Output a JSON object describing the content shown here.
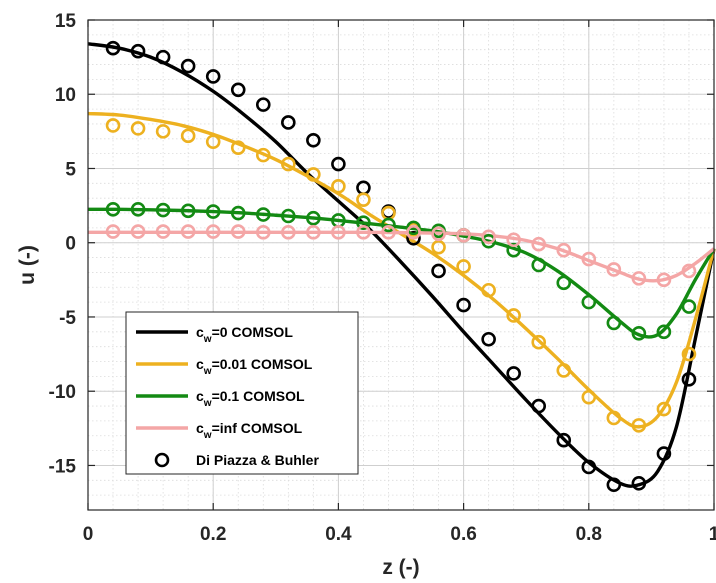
{
  "chart_data": {
    "type": "line",
    "xlabel": "z (-)",
    "ylabel": "u (-)",
    "xlim": [
      0,
      1
    ],
    "ylim": [
      -18,
      15
    ],
    "xticks": [
      "0",
      "0.2",
      "0.4",
      "0.6",
      "0.8",
      "1"
    ],
    "xtick_values": [
      0,
      0.2,
      0.4,
      0.6,
      0.8,
      1
    ],
    "yticks": [
      "15",
      "10",
      "5",
      "0",
      "-5",
      "-10",
      "-15"
    ],
    "ytick_values": [
      15,
      10,
      5,
      0,
      -5,
      -10,
      -15
    ],
    "grid": true,
    "legend_position": "bottom-left",
    "series": [
      {
        "name": "=0 COMSOL",
        "legend_base": "c",
        "legend_sub": "w",
        "legend_rest": "=0 COMSOL",
        "kind": "line",
        "color": "#000000",
        "x": [
          0,
          0.05,
          0.1,
          0.15,
          0.2,
          0.25,
          0.3,
          0.35,
          0.4,
          0.45,
          0.5,
          0.55,
          0.6,
          0.65,
          0.7,
          0.75,
          0.8,
          0.85,
          0.88,
          0.91,
          0.94,
          0.97,
          1.0
        ],
        "y": [
          13.4,
          13.1,
          12.5,
          11.5,
          10.2,
          8.6,
          6.8,
          4.7,
          2.8,
          0.9,
          -1.3,
          -3.6,
          -6.0,
          -8.3,
          -10.6,
          -12.8,
          -14.8,
          -16.2,
          -16.3,
          -15.4,
          -12.4,
          -6.5,
          -0.4
        ]
      },
      {
        "name": "=0.01 COMSOL",
        "legend_base": "c",
        "legend_sub": "w",
        "legend_rest": "=0.01 COMSOL",
        "kind": "line",
        "color": "#EDB120",
        "x": [
          0,
          0.05,
          0.1,
          0.15,
          0.2,
          0.25,
          0.3,
          0.35,
          0.4,
          0.45,
          0.5,
          0.55,
          0.6,
          0.65,
          0.7,
          0.75,
          0.8,
          0.85,
          0.88,
          0.91,
          0.94,
          0.97,
          1.0
        ],
        "y": [
          8.7,
          8.6,
          8.3,
          7.9,
          7.3,
          6.5,
          5.6,
          4.5,
          3.3,
          1.9,
          0.6,
          -0.7,
          -2.2,
          -3.9,
          -5.8,
          -7.8,
          -9.9,
          -11.8,
          -12.4,
          -11.7,
          -9.4,
          -5.2,
          -0.4
        ]
      },
      {
        "name": "=0.1 COMSOL",
        "legend_base": "c",
        "legend_sub": "w",
        "legend_rest": "=0.1 COMSOL",
        "kind": "line",
        "color": "#138A13",
        "x": [
          0,
          0.05,
          0.1,
          0.15,
          0.2,
          0.25,
          0.3,
          0.35,
          0.4,
          0.45,
          0.5,
          0.55,
          0.6,
          0.65,
          0.7,
          0.75,
          0.8,
          0.85,
          0.88,
          0.91,
          0.94,
          0.97,
          1.0
        ],
        "y": [
          2.25,
          2.25,
          2.22,
          2.17,
          2.1,
          2.0,
          1.85,
          1.7,
          1.5,
          1.28,
          1.05,
          0.8,
          0.45,
          0.0,
          -0.7,
          -1.9,
          -3.5,
          -5.3,
          -6.2,
          -6.2,
          -4.8,
          -2.5,
          -0.4
        ]
      },
      {
        "name": "=inf COMSOL",
        "legend_base": "c",
        "legend_sub": "w",
        "legend_rest": "=inf COMSOL",
        "kind": "line",
        "color": "#F4A6A6",
        "x": [
          0,
          0.05,
          0.1,
          0.15,
          0.2,
          0.25,
          0.3,
          0.35,
          0.4,
          0.45,
          0.5,
          0.55,
          0.6,
          0.65,
          0.7,
          0.75,
          0.8,
          0.85,
          0.88,
          0.91,
          0.94,
          0.97,
          1.0
        ],
        "y": [
          0.7,
          0.7,
          0.7,
          0.7,
          0.7,
          0.7,
          0.7,
          0.7,
          0.7,
          0.7,
          0.68,
          0.65,
          0.6,
          0.45,
          0.15,
          -0.4,
          -1.2,
          -2.0,
          -2.45,
          -2.55,
          -2.2,
          -1.4,
          -0.4
        ]
      },
      {
        "name": "Di Piazza & Buhler",
        "kind": "markers",
        "color": "#000000",
        "legend": true,
        "x": [
          0.04,
          0.08,
          0.12,
          0.16,
          0.2,
          0.24,
          0.28,
          0.32,
          0.36,
          0.4,
          0.44,
          0.48,
          0.52,
          0.56,
          0.6,
          0.64,
          0.68,
          0.72,
          0.76,
          0.8,
          0.84,
          0.88,
          0.92,
          0.96
        ],
        "y": [
          13.1,
          12.9,
          12.5,
          11.9,
          11.2,
          10.3,
          9.3,
          8.1,
          6.9,
          5.3,
          3.7,
          2.1,
          0.3,
          -1.9,
          -4.2,
          -6.5,
          -8.8,
          -11.0,
          -13.3,
          -15.1,
          -16.3,
          -16.2,
          -14.2,
          -9.2
        ]
      },
      {
        "kind": "markers",
        "color": "#EDB120",
        "legend": false,
        "x": [
          0.04,
          0.08,
          0.12,
          0.16,
          0.2,
          0.24,
          0.28,
          0.32,
          0.36,
          0.4,
          0.44,
          0.48,
          0.52,
          0.56,
          0.6,
          0.64,
          0.68,
          0.72,
          0.76,
          0.8,
          0.84,
          0.88,
          0.92,
          0.96
        ],
        "y": [
          7.9,
          7.7,
          7.5,
          7.2,
          6.8,
          6.4,
          5.9,
          5.3,
          4.6,
          3.8,
          2.9,
          2.0,
          0.9,
          -0.3,
          -1.6,
          -3.2,
          -4.9,
          -6.7,
          -8.6,
          -10.4,
          -11.8,
          -12.3,
          -11.2,
          -7.5
        ]
      },
      {
        "kind": "markers",
        "color": "#138A13",
        "legend": false,
        "x": [
          0.04,
          0.08,
          0.12,
          0.16,
          0.2,
          0.24,
          0.28,
          0.32,
          0.36,
          0.4,
          0.44,
          0.48,
          0.52,
          0.56,
          0.6,
          0.64,
          0.68,
          0.72,
          0.76,
          0.8,
          0.84,
          0.88,
          0.92,
          0.96
        ],
        "y": [
          2.25,
          2.25,
          2.2,
          2.15,
          2.1,
          2.0,
          1.9,
          1.8,
          1.65,
          1.5,
          1.35,
          1.2,
          1.0,
          0.8,
          0.5,
          0.1,
          -0.5,
          -1.5,
          -2.7,
          -4.0,
          -5.4,
          -6.1,
          -6.0,
          -4.3
        ]
      },
      {
        "kind": "markers",
        "color": "#F4A6A6",
        "legend": false,
        "x": [
          0.04,
          0.08,
          0.12,
          0.16,
          0.2,
          0.24,
          0.28,
          0.32,
          0.36,
          0.4,
          0.44,
          0.48,
          0.52,
          0.56,
          0.6,
          0.64,
          0.68,
          0.72,
          0.76,
          0.8,
          0.84,
          0.88,
          0.92,
          0.96
        ],
        "y": [
          0.75,
          0.75,
          0.75,
          0.75,
          0.75,
          0.75,
          0.7,
          0.7,
          0.7,
          0.7,
          0.7,
          0.7,
          0.7,
          0.6,
          0.5,
          0.4,
          0.2,
          -0.1,
          -0.5,
          -1.1,
          -1.8,
          -2.4,
          -2.5,
          -1.9
        ]
      }
    ]
  }
}
